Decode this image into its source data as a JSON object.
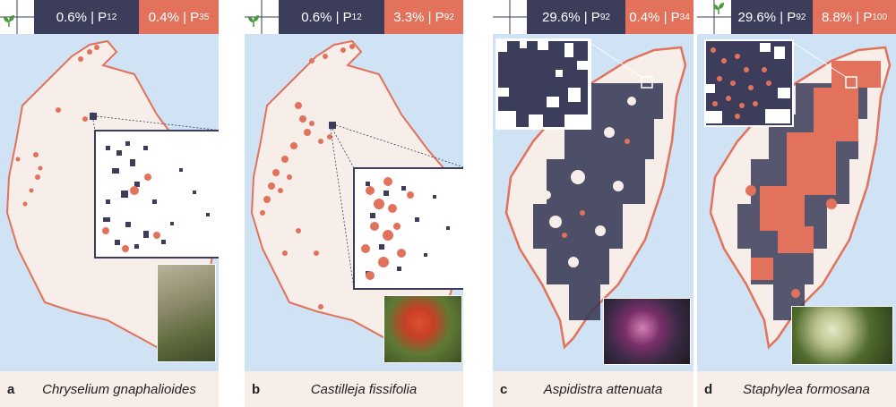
{
  "colors": {
    "dark": "#3b3d5a",
    "orange": "#e2725b",
    "water": "#cfe3f4",
    "land": "#f7ede9",
    "leaf": "#4a9a3c"
  },
  "panels": [
    {
      "label": "a",
      "species": "Chryselium gnaphalioides",
      "badge1": {
        "pct": "0.6% | P",
        "sub": "12"
      },
      "badge2": {
        "pct": "0.4% | P",
        "sub": "35"
      }
    },
    {
      "label": "b",
      "species": "Castilleja fissifolia",
      "badge1": {
        "pct": "0.6% | P",
        "sub": "12"
      },
      "badge2": {
        "pct": "3.3% | P",
        "sub": "92"
      }
    },
    {
      "label": "c",
      "species": "Aspidistra attenuata",
      "badge1": {
        "pct": "29.6% | P",
        "sub": "92"
      },
      "badge2": {
        "pct": "0.4% | P",
        "sub": "34"
      }
    },
    {
      "label": "d",
      "species": "Staphylea formosana",
      "badge1": {
        "pct": "29.6% | P",
        "sub": "92"
      },
      "badge2": {
        "pct": "8.8% | P",
        "sub": "100"
      }
    }
  ],
  "icons": {
    "leaf": "sprout-icon"
  }
}
